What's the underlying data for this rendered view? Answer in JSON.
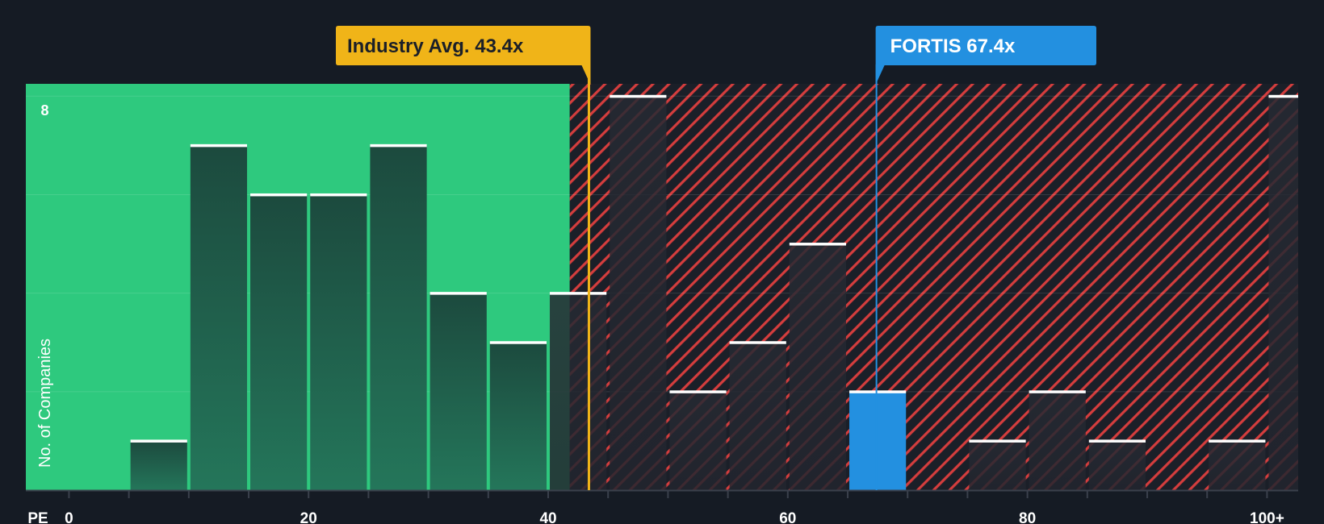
{
  "chart_data": {
    "type": "bar",
    "title": "",
    "xlabel": "PE",
    "ylabel": "No. of Companies",
    "x_tick_labels": [
      "0",
      "20",
      "40",
      "60",
      "80",
      "100+"
    ],
    "x_ticks": [
      0,
      20,
      40,
      60,
      80,
      100
    ],
    "x_range": [
      -3.6,
      102.6
    ],
    "y_range": [
      0,
      8.25
    ],
    "y_tick_labels": [
      "8"
    ],
    "bin_width": 5,
    "bins": [
      {
        "start": 5,
        "count": 1
      },
      {
        "start": 10,
        "count": 7
      },
      {
        "start": 15,
        "count": 6
      },
      {
        "start": 20,
        "count": 6
      },
      {
        "start": 25,
        "count": 7
      },
      {
        "start": 30,
        "count": 4
      },
      {
        "start": 35,
        "count": 3
      },
      {
        "start": 40,
        "count": 4
      },
      {
        "start": 45,
        "count": 8
      },
      {
        "start": 50,
        "count": 2
      },
      {
        "start": 55,
        "count": 3
      },
      {
        "start": 60,
        "count": 5
      },
      {
        "start": 65,
        "count": 2,
        "highlight": true
      },
      {
        "start": 75,
        "count": 1
      },
      {
        "start": 80,
        "count": 2
      },
      {
        "start": 85,
        "count": 1
      },
      {
        "start": 95,
        "count": 1
      },
      {
        "start": 100,
        "count": 8
      }
    ],
    "fair_zone_end": 41.8,
    "industry_avg": {
      "value": 43.4,
      "label": "Industry Avg. 43.4x"
    },
    "company": {
      "value": 67.4,
      "label": "FORTIS 67.4x"
    },
    "colors": {
      "background": "#151b24",
      "green_zone": "#2ec97e",
      "red_zone": "#d43d3d",
      "industry": "#f0b418",
      "company": "#2390e0"
    }
  }
}
